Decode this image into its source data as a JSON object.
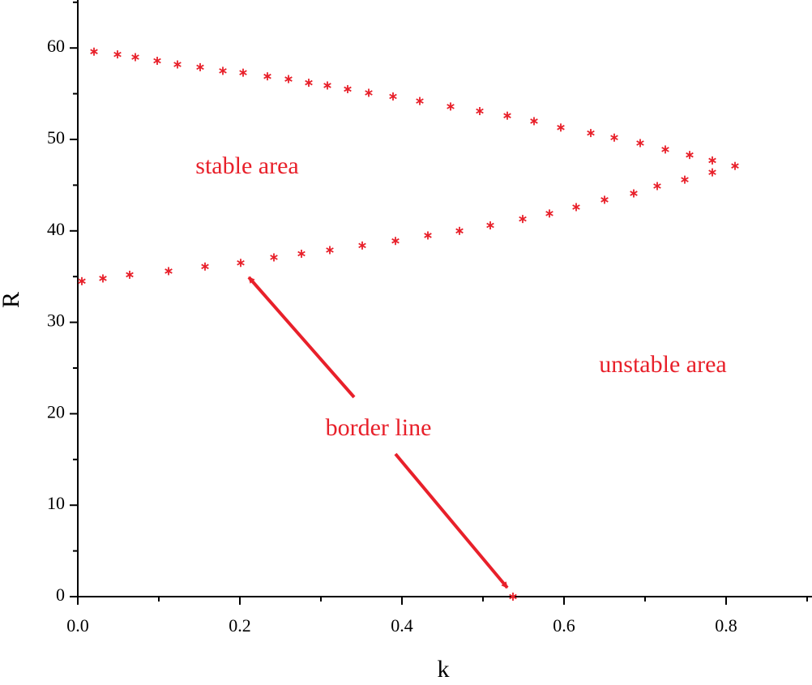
{
  "chart_data": {
    "type": "scatter",
    "x_label": "k",
    "y_label": "R",
    "xlim": [
      0,
      0.904
    ],
    "ylim": [
      0,
      65.2
    ],
    "xticks": [
      {
        "value": 0,
        "label": "0.0"
      },
      0.2,
      0.4,
      0.6,
      0.8
    ],
    "yticks": [
      0,
      10,
      20,
      30,
      40,
      50,
      60
    ],
    "xminorticks": [
      0.1,
      0.3,
      0.5,
      0.7,
      0.9
    ],
    "yminorticks": [
      5,
      15,
      25,
      35,
      45,
      55,
      65
    ],
    "marker": "asterisk",
    "series": [
      {
        "color": "#e8202a",
        "x": [
          0.02,
          0.049,
          0.071,
          0.098,
          0.123,
          0.151,
          0.179,
          0.204,
          0.234,
          0.26,
          0.285,
          0.308,
          0.333,
          0.359,
          0.389,
          0.422,
          0.46,
          0.496,
          0.53,
          0.563,
          0.596,
          0.633,
          0.662,
          0.694,
          0.725,
          0.755,
          0.783,
          0.811
        ],
        "values": [
          59.6,
          59.3,
          59.0,
          58.6,
          58.2,
          57.9,
          57.5,
          57.3,
          56.9,
          56.6,
          56.2,
          55.9,
          55.5,
          55.1,
          54.7,
          54.2,
          53.6,
          53.1,
          52.6,
          52.0,
          51.3,
          50.7,
          50.2,
          49.6,
          48.9,
          48.3,
          47.7,
          47.1
        ]
      },
      {
        "color": "#e8202a",
        "x": [
          0.005,
          0.031,
          0.064,
          0.112,
          0.157,
          0.201,
          0.242,
          0.276,
          0.311,
          0.351,
          0.392,
          0.432,
          0.471,
          0.509,
          0.549,
          0.582,
          0.615,
          0.65,
          0.686,
          0.715,
          0.749,
          0.783
        ],
        "values": [
          34.5,
          34.8,
          35.2,
          35.6,
          36.1,
          36.5,
          37.1,
          37.5,
          37.9,
          38.4,
          38.9,
          39.5,
          40.0,
          40.6,
          41.3,
          41.9,
          42.6,
          43.4,
          44.1,
          44.9,
          45.6,
          46.4
        ]
      },
      {
        "color": "#e8202a",
        "x": [
          0.537
        ],
        "values": [
          0
        ]
      }
    ],
    "annotations": [
      "stable area",
      "unstable area",
      "border line"
    ]
  }
}
